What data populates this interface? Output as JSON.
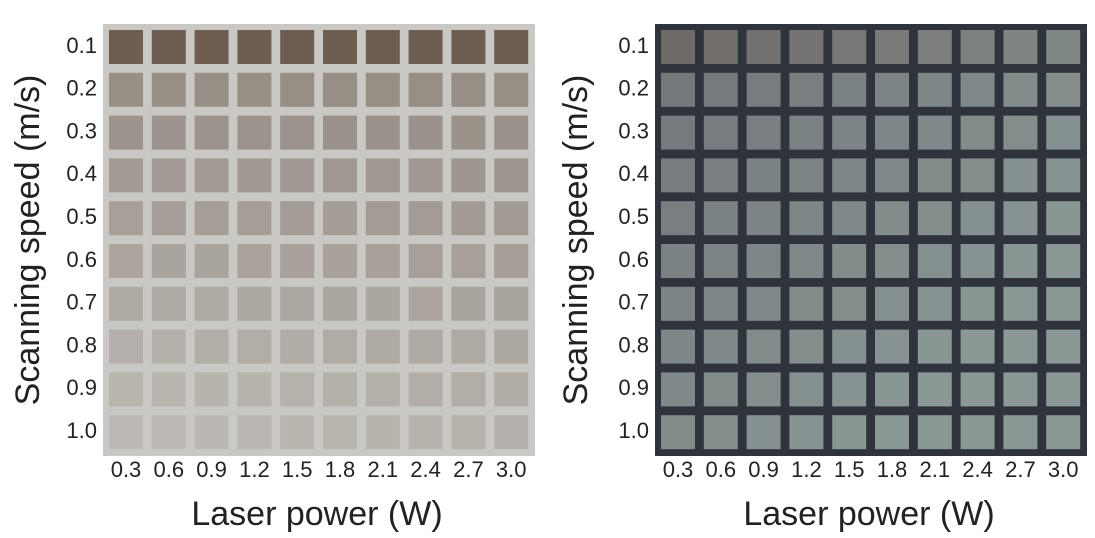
{
  "panels": [
    {
      "y_label": "Scanning speed (m/s)",
      "y_ticks": [
        "0.1",
        "0.2",
        "0.3",
        "0.4",
        "0.5",
        "0.6",
        "0.7",
        "0.8",
        "0.9",
        "1.0"
      ],
      "x_ticks": [
        "0.3",
        "0.6",
        "0.9",
        "1.2",
        "1.5",
        "1.8",
        "2.1",
        "2.4",
        "2.7",
        "3.0"
      ],
      "x_label": "Laser power (W)"
    },
    {
      "y_label": "Scanning speed (m/s)",
      "y_ticks": [
        "0.1",
        "0.2",
        "0.3",
        "0.4",
        "0.5",
        "0.6",
        "0.7",
        "0.8",
        "0.9",
        "1.0"
      ],
      "x_ticks": [
        "0.3",
        "0.6",
        "0.9",
        "1.2",
        "1.5",
        "1.8",
        "2.1",
        "2.4",
        "2.7",
        "3.0"
      ],
      "x_label": "Laser power (W)"
    }
  ]
}
